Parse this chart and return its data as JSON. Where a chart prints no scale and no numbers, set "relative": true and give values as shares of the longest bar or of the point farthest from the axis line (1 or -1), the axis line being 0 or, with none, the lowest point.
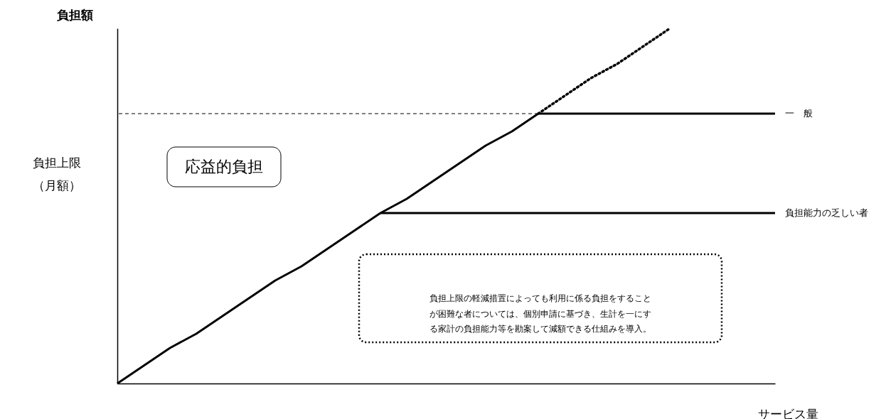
{
  "chart_data": {
    "type": "line",
    "relative": true,
    "ylabel": "負担額",
    "xlabel": "サービス量",
    "categories": [
      null,
      null,
      null,
      null,
      null,
      null,
      null,
      null,
      null,
      null,
      null,
      null,
      null,
      null,
      null,
      null,
      null,
      null,
      null,
      null,
      null,
      null,
      null,
      null,
      null,
      null
    ],
    "series": [
      {
        "name": "一　般",
        "color": "#000000",
        "values": [
          0,
          0.05,
          0.1,
          0.14,
          0.19,
          0.24,
          0.29,
          0.33,
          0.38,
          0.43,
          0.48,
          0.52,
          0.57,
          0.62,
          0.67,
          0.71,
          0.76,
          0.76,
          0.76,
          0.76,
          0.76,
          0.76,
          0.76,
          0.76,
          0.76,
          0.76
        ]
      },
      {
        "name": "負担能力の乏しい者",
        "color": "#000000",
        "values": [
          null,
          null,
          null,
          null,
          null,
          null,
          null,
          null,
          null,
          null,
          0.48,
          0.48,
          0.48,
          0.48,
          0.48,
          0.48,
          0.48,
          0.48,
          0.48,
          0.48,
          0.48,
          0.48,
          0.48,
          0.48,
          0.48,
          0.48
        ]
      },
      {
        "color": "#000000",
        "line_style": "dotted",
        "values": [
          null,
          null,
          null,
          null,
          null,
          null,
          null,
          null,
          null,
          null,
          null,
          null,
          null,
          null,
          null,
          null,
          0.76,
          0.81,
          0.86,
          0.9,
          0.95,
          1.0,
          null,
          null,
          null,
          null
        ]
      }
    ],
    "ref_lines": [
      {
        "axis": "y",
        "value": 0.76,
        "line_style": "dashed",
        "color": "#000000"
      }
    ],
    "annotations": [
      "負担上限（月額）",
      "応益的負担",
      "負担上限の軽減措置によっても利用に係る負担をすることが困難な者については、個別申請に基づき、生計を一にする家計の負担能力等を勘案して減額できる仕組みを導入。"
    ],
    "legend": false,
    "tick_labels": false,
    "grid": false
  }
}
